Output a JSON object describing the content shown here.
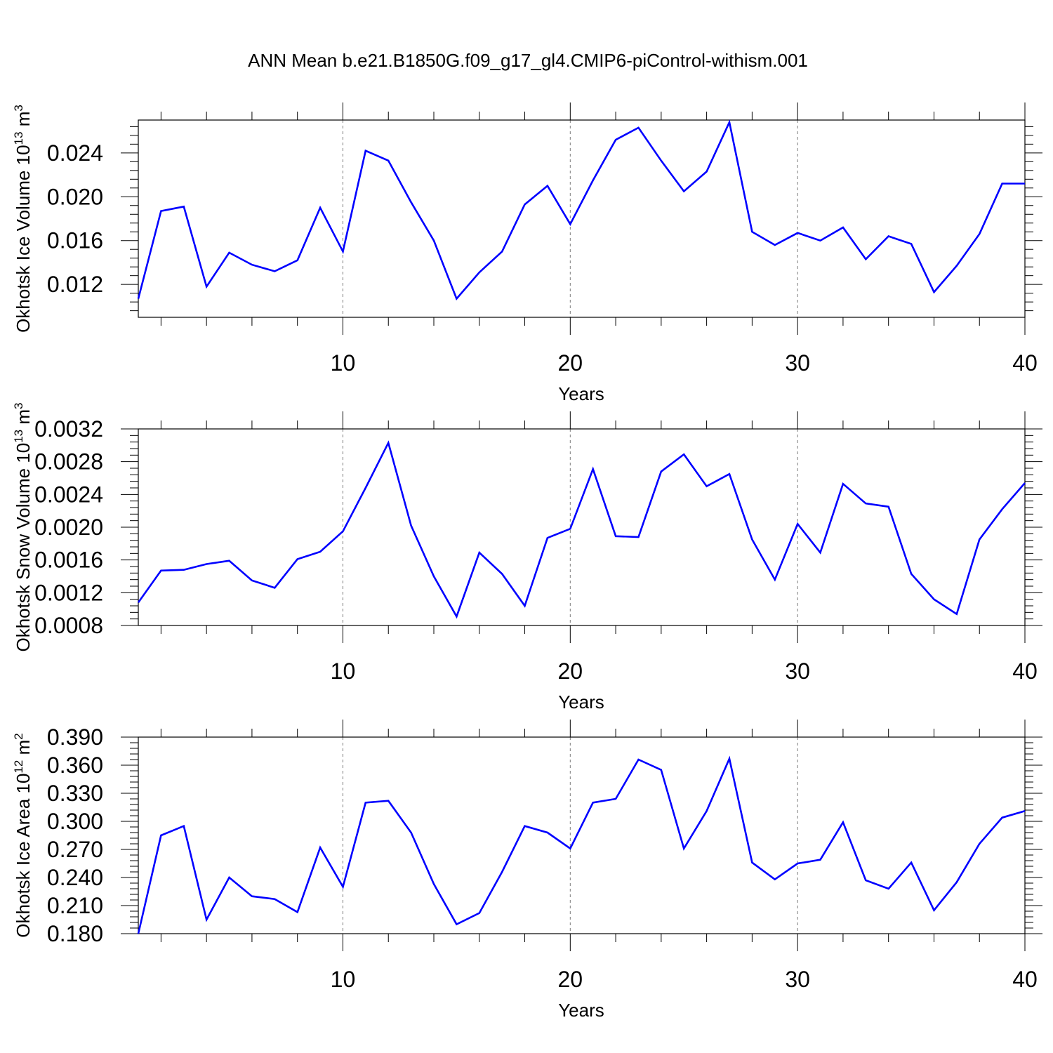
{
  "title": "ANN Mean b.e21.B1850G.f09_g17_gl4.CMIP6-piControl-withism.001",
  "colors": {
    "line": "#0000ff",
    "axis": "#000000",
    "grid": "#7a7a7a"
  },
  "chart_data": [
    {
      "type": "line",
      "ylabel": {
        "main": "Okhotsk Ice Volume 10",
        "exp": "13",
        "unit": " m",
        "unit_exp": "3"
      },
      "xlabel": "Years",
      "xlim": [
        1,
        40
      ],
      "ylim": [
        0.009,
        0.027
      ],
      "yticks": [
        0.012,
        0.016,
        0.02,
        0.024
      ],
      "ytick_labels": [
        "0.012",
        "0.016",
        "0.020",
        "0.024"
      ],
      "xticks": [
        10,
        20,
        30,
        40
      ],
      "xtick_labels": [
        "10",
        "20",
        "30",
        "40"
      ],
      "x": [
        1,
        2,
        3,
        4,
        5,
        6,
        7,
        8,
        9,
        10,
        11,
        12,
        13,
        14,
        15,
        16,
        17,
        18,
        19,
        20,
        21,
        22,
        23,
        24,
        25,
        26,
        27,
        28,
        29,
        30,
        31,
        32,
        33,
        34,
        35,
        36,
        37,
        38,
        39,
        40
      ],
      "series": [
        {
          "values": [
            0.0107,
            0.0187,
            0.0191,
            0.0118,
            0.0149,
            0.0138,
            0.0132,
            0.0142,
            0.019,
            0.015,
            0.0242,
            0.0233,
            0.0195,
            0.016,
            0.0107,
            0.0131,
            0.015,
            0.0193,
            0.021,
            0.0175,
            0.0215,
            0.0252,
            0.0263,
            0.0233,
            0.0205,
            0.0223,
            0.0268,
            0.0168,
            0.0156,
            0.0167,
            0.016,
            0.0172,
            0.0143,
            0.0164,
            0.0157,
            0.0113,
            0.0137,
            0.0166,
            0.0212,
            0.0212
          ]
        }
      ]
    },
    {
      "type": "line",
      "ylabel": {
        "main": "Okhotsk Snow Volume 10",
        "exp": "13",
        "unit": " m",
        "unit_exp": "3"
      },
      "xlabel": "Years",
      "xlim": [
        1,
        40
      ],
      "ylim": [
        0.0008,
        0.0032
      ],
      "yticks": [
        0.0008,
        0.0012,
        0.0016,
        0.002,
        0.0024,
        0.0028,
        0.0032
      ],
      "ytick_labels": [
        "0.0008",
        "0.0012",
        "0.0016",
        "0.0020",
        "0.0024",
        "0.0028",
        "0.0032"
      ],
      "xticks": [
        10,
        20,
        30,
        40
      ],
      "xtick_labels": [
        "10",
        "20",
        "30",
        "40"
      ],
      "x": [
        1,
        2,
        3,
        4,
        5,
        6,
        7,
        8,
        9,
        10,
        11,
        12,
        13,
        14,
        15,
        16,
        17,
        18,
        19,
        20,
        21,
        22,
        23,
        24,
        25,
        26,
        27,
        28,
        29,
        30,
        31,
        32,
        33,
        34,
        35,
        36,
        37,
        38,
        39,
        40
      ],
      "series": [
        {
          "values": [
            0.00108,
            0.00147,
            0.00148,
            0.00155,
            0.00159,
            0.00135,
            0.00126,
            0.00161,
            0.0017,
            0.00195,
            0.00248,
            0.00303,
            0.00202,
            0.0014,
            0.00091,
            0.00169,
            0.00143,
            0.00104,
            0.00187,
            0.00198,
            0.00271,
            0.00189,
            0.00188,
            0.00268,
            0.00289,
            0.0025,
            0.00265,
            0.00185,
            0.00136,
            0.00204,
            0.00169,
            0.00253,
            0.00229,
            0.00225,
            0.00143,
            0.00112,
            0.00094,
            0.00185,
            0.00222,
            0.00254
          ]
        }
      ]
    },
    {
      "type": "line",
      "ylabel": {
        "main": "Okhotsk Ice Area 10",
        "exp": "12",
        "unit": " m",
        "unit_exp": "2"
      },
      "xlabel": "Years",
      "xlim": [
        1,
        40
      ],
      "ylim": [
        0.18,
        0.39
      ],
      "yticks": [
        0.18,
        0.21,
        0.24,
        0.27,
        0.3,
        0.33,
        0.36,
        0.39
      ],
      "ytick_labels": [
        "0.180",
        "0.210",
        "0.240",
        "0.270",
        "0.300",
        "0.330",
        "0.360",
        "0.390"
      ],
      "xticks": [
        10,
        20,
        30,
        40
      ],
      "xtick_labels": [
        "10",
        "20",
        "30",
        "40"
      ],
      "x": [
        1,
        2,
        3,
        4,
        5,
        6,
        7,
        8,
        9,
        10,
        11,
        12,
        13,
        14,
        15,
        16,
        17,
        18,
        19,
        20,
        21,
        22,
        23,
        24,
        25,
        26,
        27,
        28,
        29,
        30,
        31,
        32,
        33,
        34,
        35,
        36,
        37,
        38,
        39,
        40
      ],
      "series": [
        {
          "values": [
            0.18,
            0.285,
            0.295,
            0.195,
            0.24,
            0.22,
            0.217,
            0.203,
            0.272,
            0.23,
            0.32,
            0.322,
            0.288,
            0.233,
            0.19,
            0.202,
            0.246,
            0.295,
            0.288,
            0.271,
            0.32,
            0.324,
            0.366,
            0.355,
            0.271,
            0.311,
            0.367,
            0.256,
            0.238,
            0.255,
            0.259,
            0.299,
            0.237,
            0.228,
            0.256,
            0.205,
            0.235,
            0.276,
            0.304,
            0.311
          ]
        }
      ]
    }
  ]
}
